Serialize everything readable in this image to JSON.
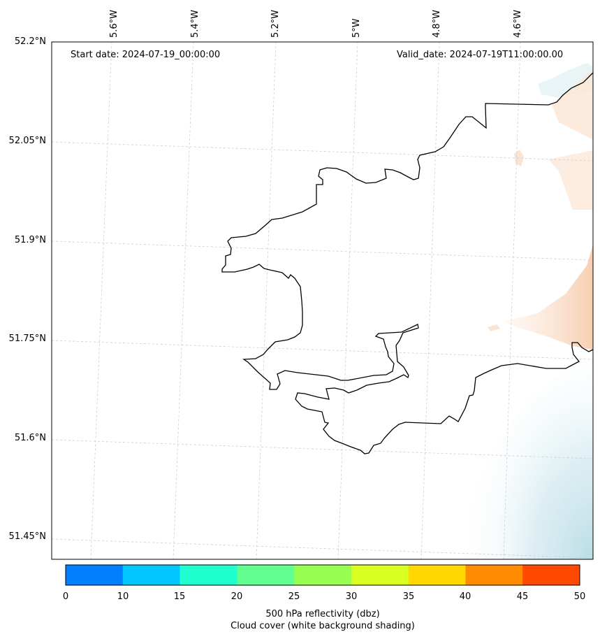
{
  "map": {
    "start_date": "Start date: 2024-07-19_00:00:00",
    "valid_date": "Valid_date: 2024-07-19T11:00:00.00",
    "lon_ticks": [
      "5.6°W",
      "5.4°W",
      "5.2°W",
      "5°W",
      "4.8°W",
      "4.6°W"
    ],
    "lat_ticks": [
      "52.2°N",
      "52.05°N",
      "51.9°N",
      "51.75°N",
      "51.6°N",
      "51.45°N"
    ],
    "coastline_color": "#000000",
    "gridline_color": "#cccccc",
    "cloud_shading": "pale blue (south-east corner)",
    "reflectivity_shading": "pale orange (eastern edge)"
  },
  "colorbar": {
    "ticks": [
      "0",
      "10",
      "15",
      "20",
      "25",
      "30",
      "35",
      "40",
      "45",
      "50"
    ],
    "colors": [
      "#0080ff",
      "#00c8ff",
      "#20ffd0",
      "#60ff90",
      "#98ff50",
      "#d8ff20",
      "#ffd800",
      "#ff8c00",
      "#ff4800"
    ],
    "label_line1": "500 hPa reflectivity (dbz)",
    "label_line2": "Cloud cover (white background shading)"
  }
}
